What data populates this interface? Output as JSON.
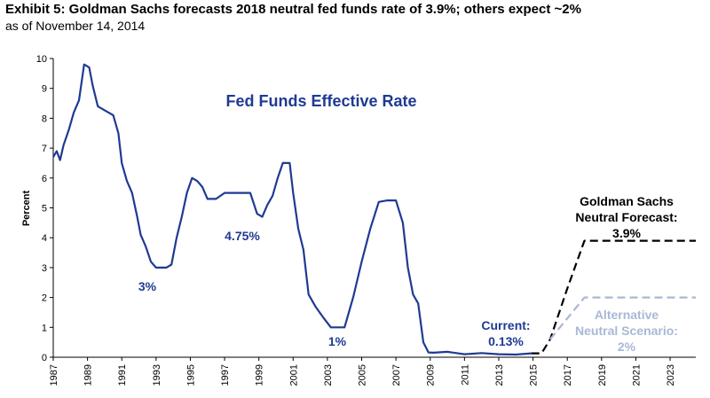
{
  "header": {
    "title": "Exhibit 5: Goldman Sachs forecasts 2018 neutral fed funds rate of 3.9%; others expect ~2%",
    "subtitle": "as of November 14, 2014"
  },
  "chart_data": {
    "type": "line",
    "ylabel": "Percent",
    "xlabel": "",
    "ylim": [
      0,
      10
    ],
    "xlim": [
      1987,
      2024.5
    ],
    "grid": false,
    "y_ticks": [
      "0",
      "1",
      "2",
      "3",
      "4",
      "5",
      "6",
      "7",
      "8",
      "9",
      "10"
    ],
    "x_ticks": [
      "1987",
      "1989",
      "1991",
      "1993",
      "1995",
      "1997",
      "1999",
      "2001",
      "2003",
      "2005",
      "2007",
      "2009",
      "2011",
      "2013",
      "2015",
      "2017",
      "2019",
      "2021",
      "2023"
    ],
    "colors": {
      "effective": "#1f3a93",
      "goldman": "#000000",
      "alternative": "#a9b8d6"
    },
    "series": [
      {
        "name": "Fed Funds Effective Rate",
        "style": "solid",
        "x": [
          1987.0,
          1987.2,
          1987.4,
          1987.6,
          1987.9,
          1988.2,
          1988.5,
          1988.8,
          1989.1,
          1989.3,
          1989.6,
          1989.9,
          1990.2,
          1990.5,
          1990.8,
          1991.0,
          1991.3,
          1991.6,
          1991.9,
          1992.1,
          1992.4,
          1992.7,
          1993.0,
          1993.3,
          1993.6,
          1993.9,
          1994.2,
          1994.5,
          1994.8,
          1995.1,
          1995.4,
          1995.7,
          1996.0,
          1996.5,
          1997.0,
          1997.5,
          1998.0,
          1998.5,
          1998.9,
          1999.2,
          1999.5,
          1999.8,
          2000.1,
          2000.4,
          2000.8,
          2001.0,
          2001.3,
          2001.6,
          2001.9,
          2002.3,
          2002.8,
          2003.2,
          2003.6,
          2004.0,
          2004.5,
          2005.0,
          2005.5,
          2006.0,
          2006.5,
          2007.0,
          2007.4,
          2007.7,
          2008.0,
          2008.3,
          2008.6,
          2008.9,
          2009.2,
          2010.0,
          2011.0,
          2012.0,
          2013.0,
          2014.0,
          2014.9
        ],
        "y": [
          6.7,
          6.9,
          6.6,
          7.1,
          7.6,
          8.2,
          8.6,
          9.8,
          9.7,
          9.1,
          8.4,
          8.3,
          8.2,
          8.1,
          7.5,
          6.5,
          5.9,
          5.5,
          4.7,
          4.1,
          3.7,
          3.2,
          3.0,
          3.0,
          3.0,
          3.1,
          4.0,
          4.7,
          5.5,
          6.0,
          5.9,
          5.7,
          5.3,
          5.3,
          5.5,
          5.5,
          5.5,
          5.5,
          4.8,
          4.7,
          5.1,
          5.4,
          6.0,
          6.5,
          6.5,
          5.5,
          4.3,
          3.6,
          2.1,
          1.7,
          1.3,
          1.0,
          1.0,
          1.0,
          2.0,
          3.2,
          4.3,
          5.2,
          5.25,
          5.25,
          4.5,
          3.0,
          2.1,
          1.8,
          0.5,
          0.16,
          0.15,
          0.18,
          0.1,
          0.14,
          0.1,
          0.09,
          0.13
        ]
      },
      {
        "name": "Goldman Sachs Neutral Forecast",
        "style": "dashed",
        "x": [
          2014.9,
          2015.5,
          2016.0,
          2017.0,
          2018.0,
          2024.5
        ],
        "y": [
          0.13,
          0.13,
          0.6,
          2.3,
          3.9,
          3.9
        ]
      },
      {
        "name": "Alternative Neutral Scenario",
        "style": "dashed",
        "x": [
          2016.0,
          2018.0,
          2024.5
        ],
        "y": [
          0.6,
          2.0,
          2.0
        ]
      }
    ],
    "annotations": {
      "series_title": "Fed Funds Effective Rate",
      "low_1993": "3%",
      "level_1999": "4.75%",
      "low_2003": "1%",
      "current_label": "Current:",
      "current_value": "0.13%",
      "goldman_line1": "Goldman Sachs",
      "goldman_line2": "Neutral Forecast:",
      "goldman_value": "3.9%",
      "alt_line1": "Alternative",
      "alt_line2": "Neutral Scenario:",
      "alt_value": "2%"
    }
  }
}
